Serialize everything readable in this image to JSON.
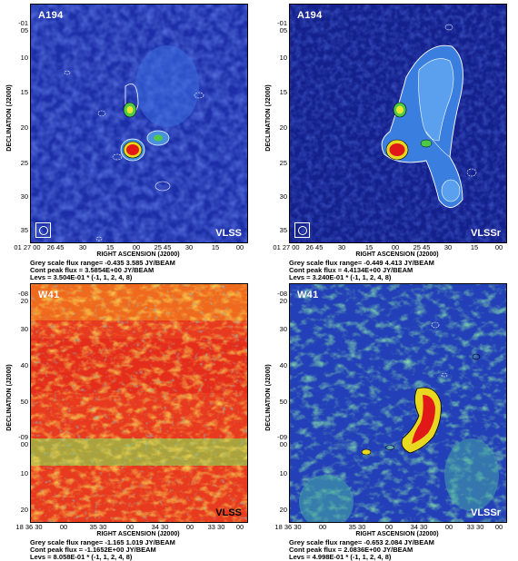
{
  "panels": [
    {
      "id": "a194-vlss",
      "source": "A194",
      "survey": "VLSS",
      "ra_label": "RIGHT ASCENSION (J2000)",
      "dec_label": "DECLINATION (J2000)",
      "dec_ticks": [
        "-01 05",
        "10",
        "15",
        "20",
        "25",
        "30",
        "35"
      ],
      "ra_ticks": [
        "01 27 00",
        "26 45",
        "30",
        "15",
        "00",
        "25 45",
        "30",
        "15",
        "00"
      ],
      "caption": [
        "Grey scale flux range= -0.435 3.585 JY/BEAM",
        "Cont peak flux = 3.5854E+00 JY/BEAM",
        "Levs = 3.504E-01 * (-1, 1, 2, 4, 8)"
      ]
    },
    {
      "id": "a194-vlssr",
      "source": "A194",
      "survey": "VLSSr",
      "ra_label": "RIGHT ASCENSION (J2000)",
      "dec_label": "DECLINATION (J2000)",
      "dec_ticks": [
        "-01 05",
        "10",
        "15",
        "20",
        "25",
        "30",
        "35"
      ],
      "ra_ticks": [
        "01 27 00",
        "26 45",
        "30",
        "15",
        "00",
        "25 45",
        "30",
        "15",
        "00"
      ],
      "caption": [
        "Grey scale flux range= -0.449 4.413 JY/BEAM",
        "Cont peak flux = 4.4134E+00 JY/BEAM",
        "Levs = 3.240E-01 * (-1, 1, 2, 4, 8)"
      ]
    },
    {
      "id": "w41-vlss",
      "source": "W41",
      "survey": "VLSS",
      "ra_label": "RIGHT ASCENSION (J2000)",
      "dec_label": "DECLINATION (J2000)",
      "dec_ticks": [
        "-08 20",
        "30",
        "40",
        "50",
        "-09 00",
        "10",
        "20"
      ],
      "ra_ticks": [
        "18 36 30",
        "00",
        "35 30",
        "00",
        "34 30",
        "00",
        "33 30",
        "00"
      ],
      "caption": [
        "Grey scale flux range= -1.165 1.019 JY/BEAM",
        "Cont peak flux = -1.1652E+00 JY/BEAM",
        "Levs = 8.058E-01 * (-1, 1, 2, 4, 8)"
      ]
    },
    {
      "id": "w41-vlssr",
      "source": "W41",
      "survey": "VLSSr",
      "ra_label": "RIGHT ASCENSION (J2000)",
      "dec_label": "DECLINATION (J2000)",
      "dec_ticks": [
        "-08 20",
        "30",
        "40",
        "50",
        "-09 00",
        "10",
        "20"
      ],
      "ra_ticks": [
        "18 36 30",
        "00",
        "35 30",
        "00",
        "34 30",
        "00",
        "33 30",
        "00"
      ],
      "caption": [
        "Grey scale flux range= -0.653 2.084 JY/BEAM",
        "Cont peak flux = 2.0836E+00 JY/BEAM",
        "Levs = 4.998E-01 * (-1, 1, 2, 4, 8)"
      ]
    }
  ]
}
